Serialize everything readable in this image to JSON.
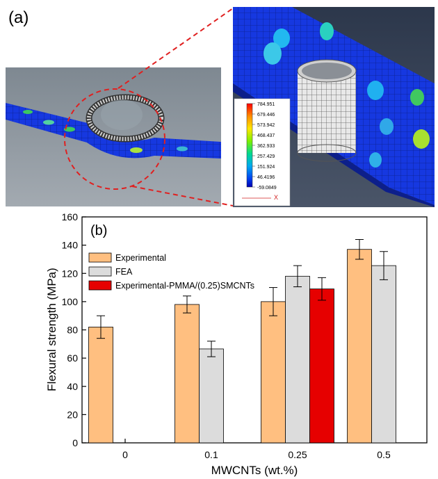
{
  "panel_a": {
    "label": "(a)",
    "colorbar": {
      "ticks": [
        "784.951",
        "679.446",
        "573.942",
        "468.437",
        "362.933",
        "257.429",
        "151.924",
        "46.4196",
        "-59.0849"
      ],
      "colors": [
        "#ff0000",
        "#ff6a00",
        "#ffd000",
        "#c8f000",
        "#4ee24e",
        "#00d8a8",
        "#00a8f0",
        "#0050f0",
        "#0000c8"
      ],
      "axis_label_x": "X"
    },
    "colors": {
      "mesh_blue": "#1638e0",
      "background_dark": "#2f3a4e",
      "background_grey": "#8a939c",
      "zoom_red": "#e02020"
    }
  },
  "chart_data": {
    "type": "bar",
    "panel_label": "(b)",
    "xlabel": "MWCNTs (wt.%)",
    "ylabel": "Flexural strength (MPa)",
    "ylim": [
      0,
      160
    ],
    "yticks": [
      0,
      20,
      40,
      60,
      80,
      100,
      120,
      140,
      160
    ],
    "categories": [
      "0",
      "0.1",
      "0.25",
      "0.5"
    ],
    "legend_position": "top-left",
    "grid": false,
    "series": [
      {
        "name": "Experimental",
        "color": "#ffbf80",
        "values": [
          82,
          98,
          100,
          137
        ],
        "errors": [
          8,
          6,
          10,
          7
        ]
      },
      {
        "name": "FEA",
        "color": "#dcdcdc",
        "values": [
          null,
          66.5,
          118,
          125.5
        ],
        "errors": [
          null,
          5.5,
          7.5,
          10
        ]
      },
      {
        "name": "Experimental-PMMA/(0.25)SMCNTs",
        "color": "#e60000",
        "values": [
          null,
          null,
          109,
          null
        ],
        "errors": [
          null,
          null,
          8,
          null
        ]
      }
    ]
  }
}
